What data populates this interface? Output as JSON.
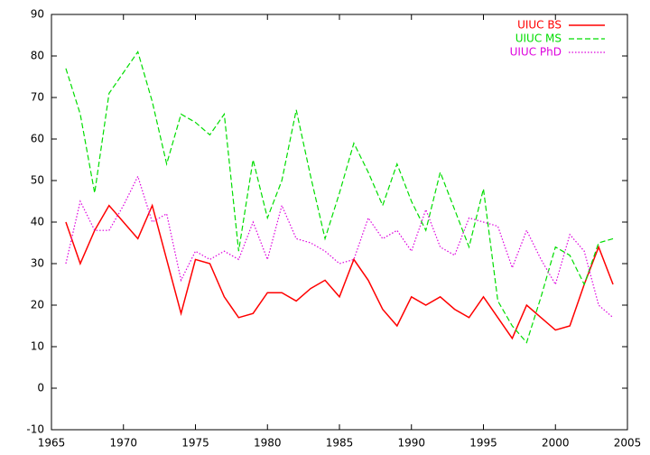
{
  "chart_data": {
    "type": "line",
    "x": [
      1966,
      1967,
      1968,
      1969,
      1970,
      1971,
      1972,
      1973,
      1974,
      1975,
      1976,
      1977,
      1978,
      1979,
      1980,
      1981,
      1982,
      1983,
      1984,
      1985,
      1986,
      1987,
      1988,
      1989,
      1990,
      1991,
      1992,
      1993,
      1994,
      1995,
      1996,
      1997,
      1998,
      1999,
      2000,
      2001,
      2002,
      2003,
      2004
    ],
    "series": [
      {
        "name": "UIUC BS",
        "color": "#ff0000",
        "dash": "solid",
        "values": [
          40,
          30,
          38,
          44,
          40,
          36,
          44,
          31,
          18,
          31,
          30,
          22,
          17,
          18,
          23,
          23,
          21,
          24,
          26,
          22,
          31,
          26,
          19,
          15,
          22,
          20,
          22,
          19,
          17,
          22,
          17,
          12,
          20,
          17,
          14,
          15,
          25,
          34,
          25
        ]
      },
      {
        "name": "UIUC MS",
        "color": "#00dd00",
        "dash": "dashed",
        "values": [
          77,
          66,
          47,
          71,
          76,
          81,
          69,
          54,
          66,
          64,
          61,
          66,
          33,
          55,
          41,
          50,
          67,
          51,
          36,
          47,
          59,
          52,
          44,
          54,
          45,
          38,
          52,
          43,
          34,
          48,
          21,
          15,
          11,
          22,
          34,
          32,
          25,
          35,
          36
        ]
      },
      {
        "name": "UIUC PhD",
        "color": "#dd00dd",
        "dash": "dotted",
        "values": [
          30,
          45,
          38,
          38,
          44,
          51,
          40,
          42,
          26,
          33,
          31,
          33,
          31,
          40,
          31,
          44,
          36,
          35,
          33,
          30,
          31,
          41,
          36,
          38,
          33,
          43,
          34,
          32,
          41,
          40,
          39,
          29,
          38,
          31,
          25,
          37,
          33,
          20,
          17
        ]
      }
    ],
    "xlim": [
      1965,
      2005
    ],
    "xticks": [
      1965,
      1970,
      1975,
      1980,
      1985,
      1990,
      1995,
      2000,
      2005
    ],
    "ylim": [
      -10,
      90
    ],
    "yticks": [
      -10,
      0,
      10,
      20,
      30,
      40,
      50,
      60,
      70,
      80,
      90
    ],
    "grid": false,
    "legend": "top-right"
  }
}
